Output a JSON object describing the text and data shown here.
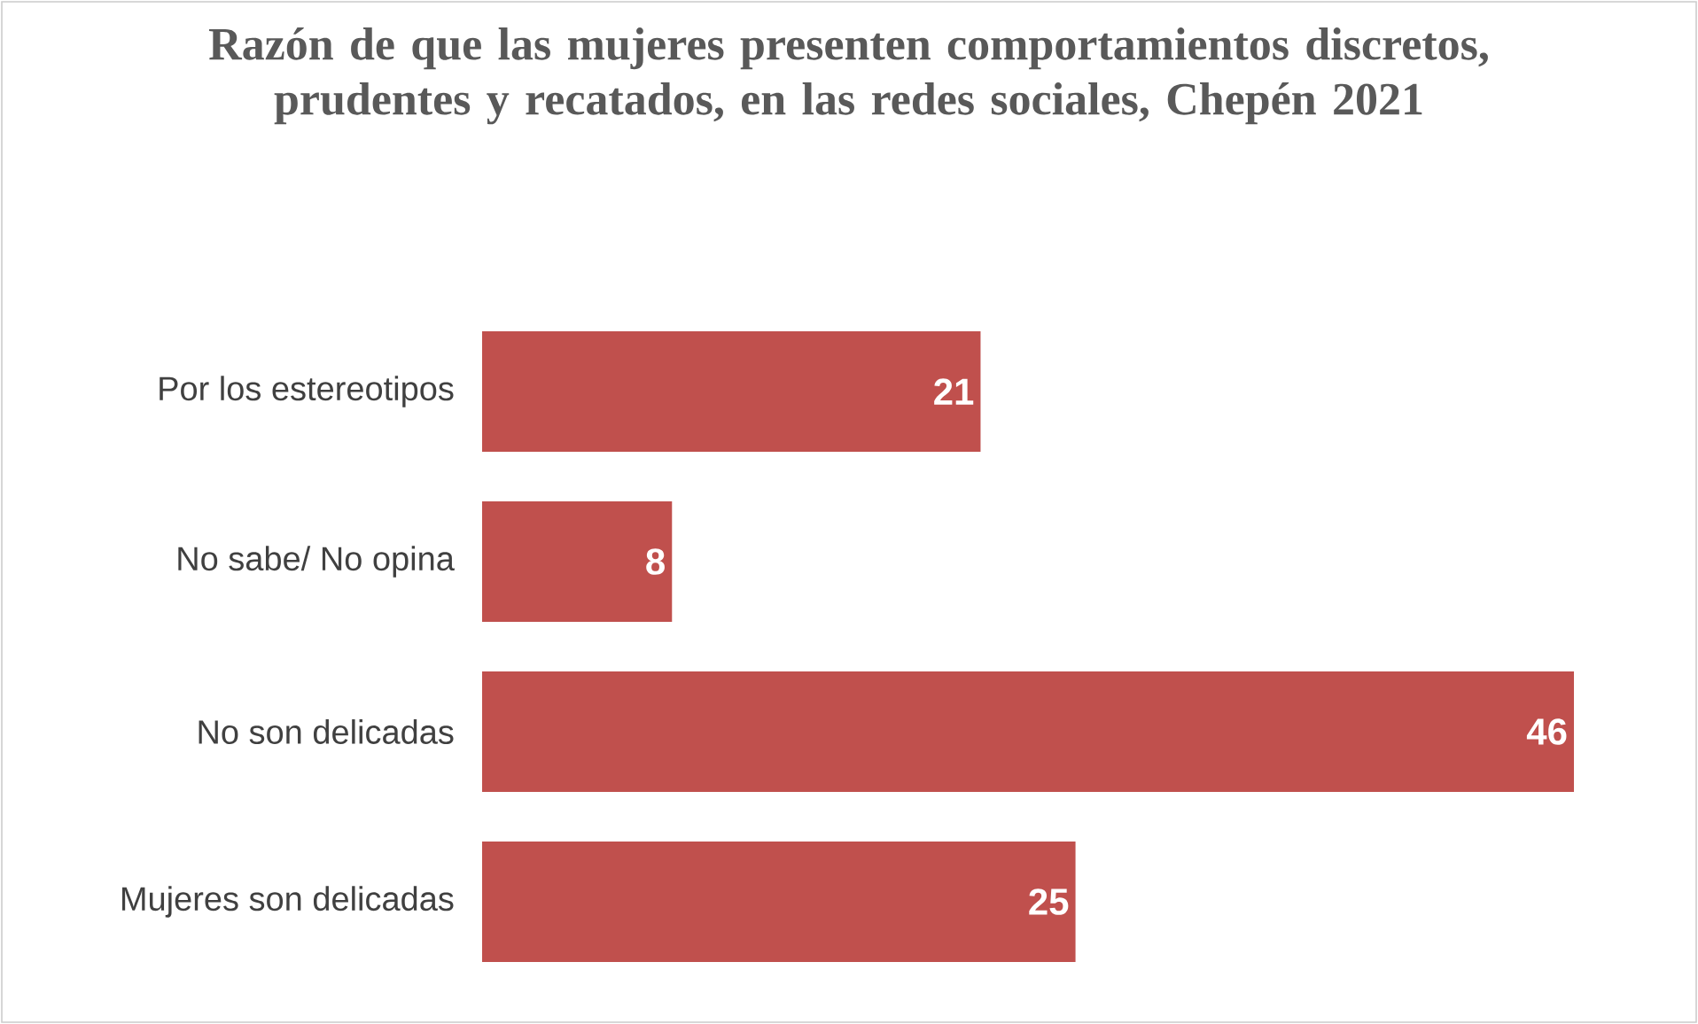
{
  "chart_data": {
    "type": "bar",
    "orientation": "horizontal",
    "title": "Razón de que las mujeres presenten comportamientos discretos, prudentes y recatados, en las redes sociales, Chepén 2021",
    "categories": [
      "Por los estereotipos",
      "No sabe/ No opina",
      "No son delicadas",
      "Mujeres son delicadas"
    ],
    "values": [
      21,
      8,
      46,
      25
    ],
    "color": "#c0504d",
    "data_labels": true
  }
}
